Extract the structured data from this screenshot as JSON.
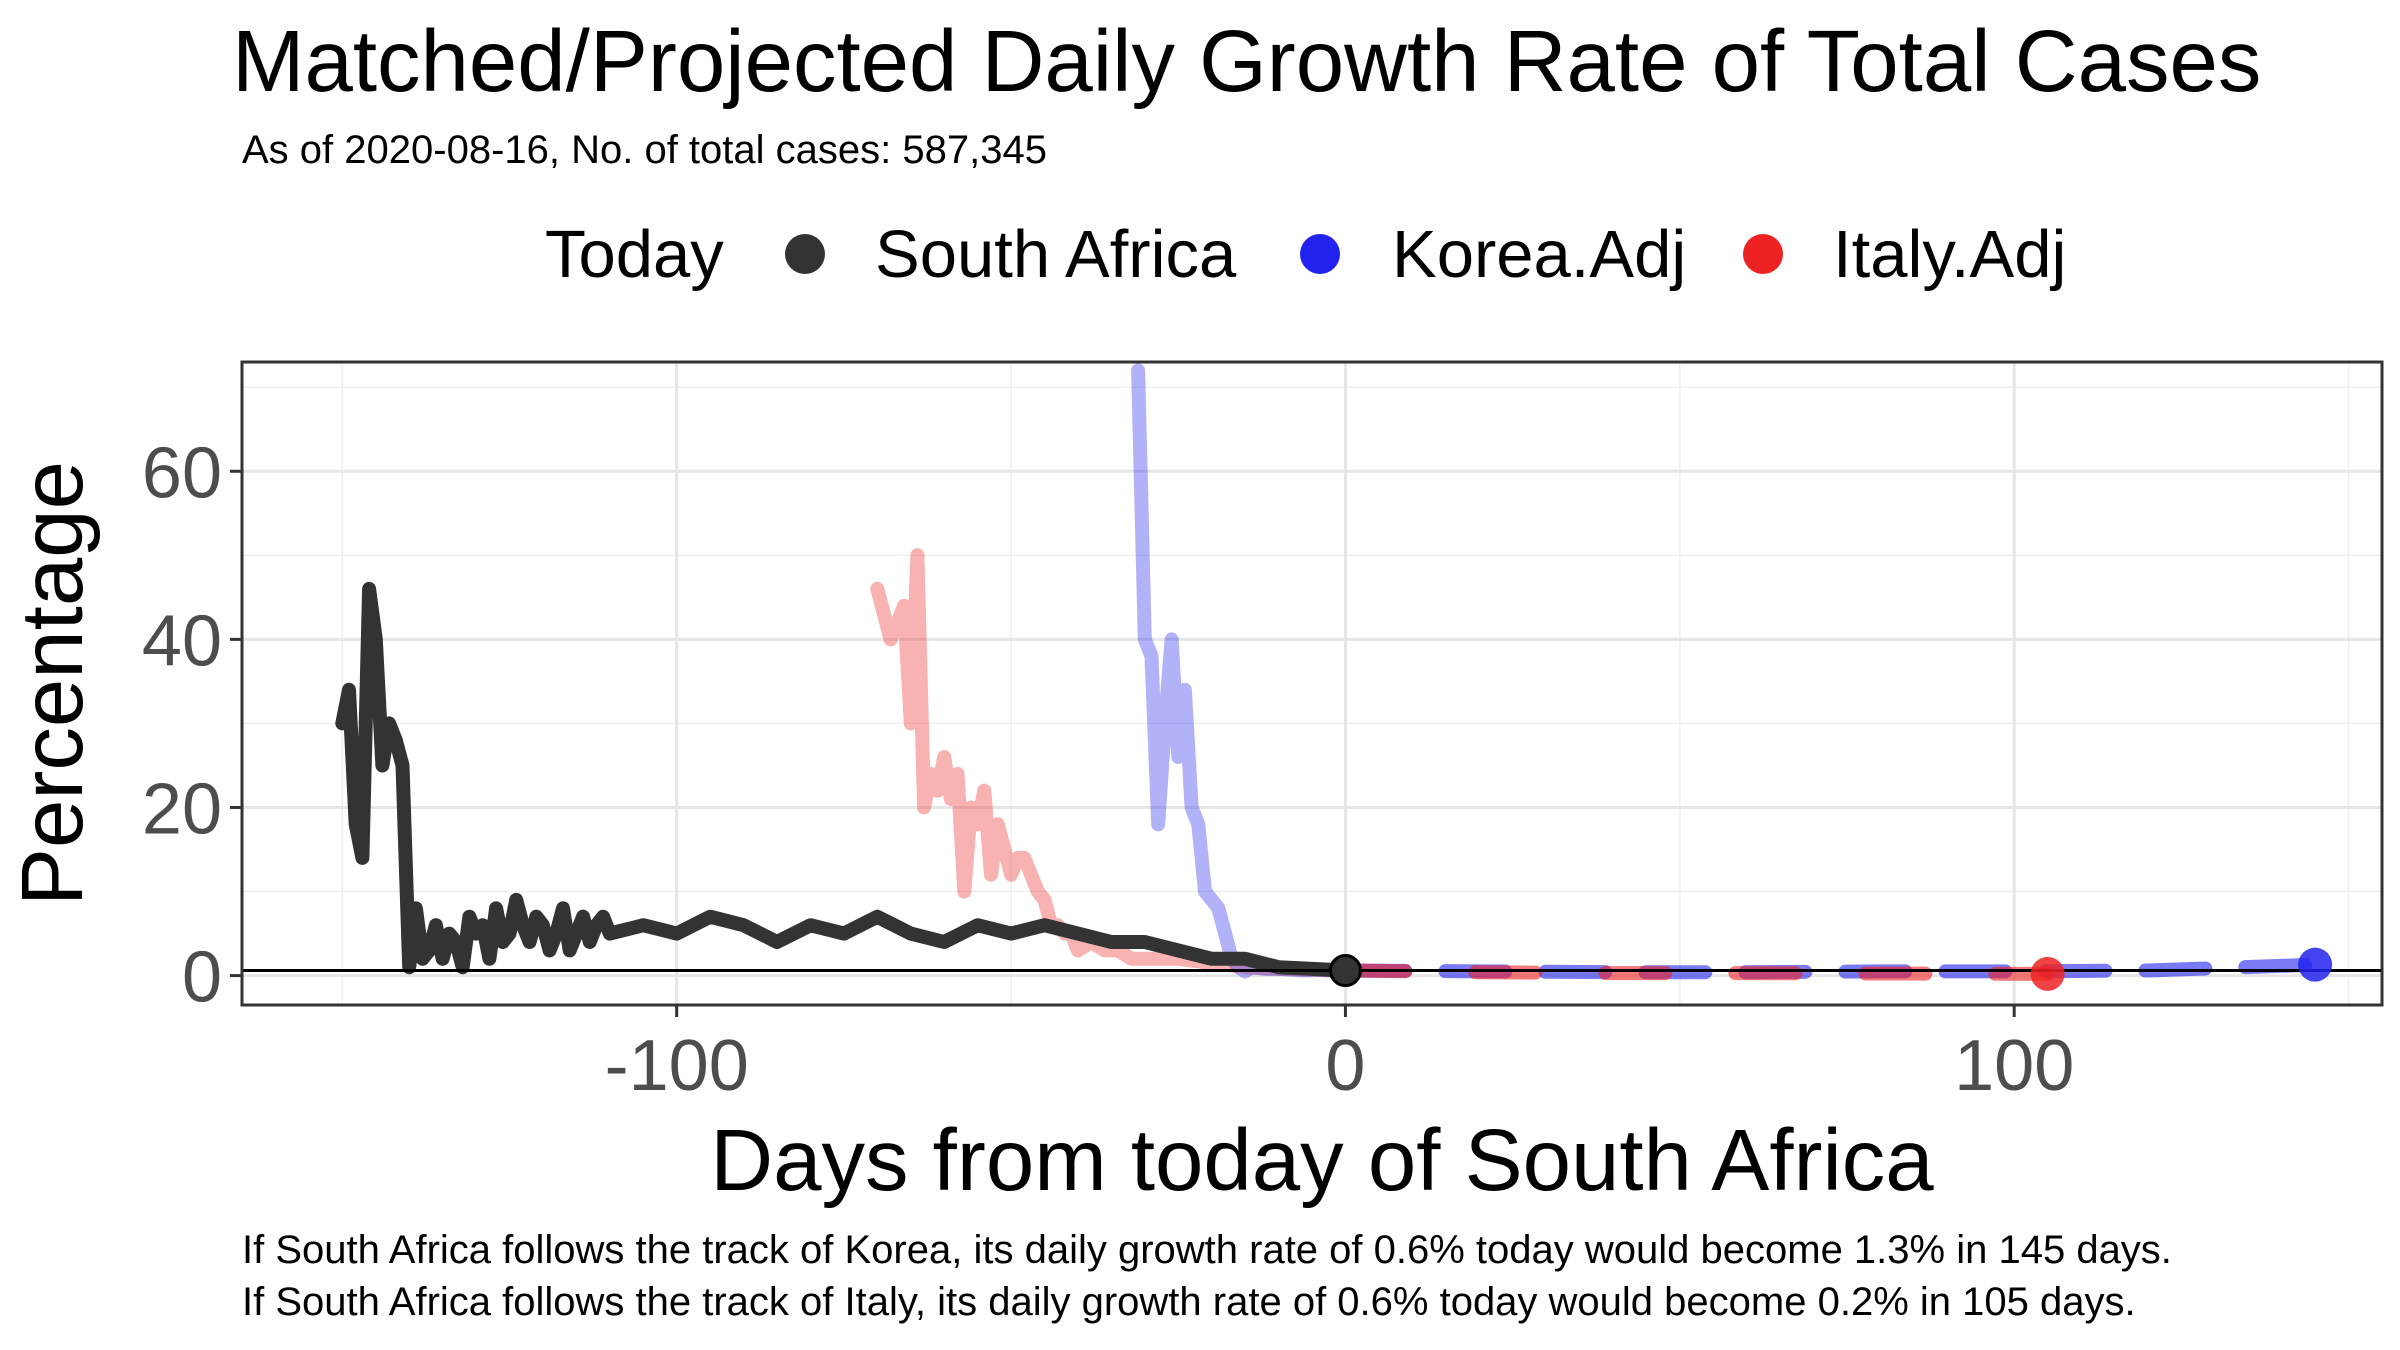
{
  "chart_data": {
    "type": "line",
    "title": "Matched/Projected Daily Growth Rate of Total Cases",
    "subtitle": "As of 2020-08-16, No. of total cases: 587,345",
    "xlabel": "Days from today of South Africa",
    "ylabel": "Percentage",
    "xlim": [
      -165,
      155
    ],
    "ylim": [
      -3.5,
      73
    ],
    "x_ticks": [
      -100,
      0,
      100
    ],
    "x_tick_labels": [
      "-100",
      "0",
      "100"
    ],
    "y_ticks": [
      0,
      20,
      40,
      60
    ],
    "y_tick_labels": [
      "0",
      "20",
      "40",
      "60"
    ],
    "grid": true,
    "legend": {
      "title": "Today",
      "position": "top",
      "entries": [
        {
          "label": "South Africa",
          "color": "#333333"
        },
        {
          "label": "Korea.Adj",
          "color": "#2222ee"
        },
        {
          "label": "Italy.Adj",
          "color": "#ee2222"
        }
      ]
    },
    "reference_line_y": 0.6,
    "series": [
      {
        "name": "South Africa",
        "color": "#333333",
        "x": [
          -150,
          -149,
          -148,
          -147,
          -146,
          -145,
          -144,
          -143,
          -142,
          -141,
          -140,
          -139,
          -138,
          -137,
          -136,
          -135,
          -134,
          -133,
          -132,
          -131,
          -130,
          -129,
          -128,
          -127,
          -126,
          -125,
          -124,
          -123,
          -122,
          -121,
          -120,
          -119,
          -118,
          -117,
          -116,
          -115,
          -114,
          -113,
          -112,
          -111,
          -110,
          -105,
          -100,
          -95,
          -90,
          -85,
          -80,
          -75,
          -70,
          -65,
          -60,
          -55,
          -50,
          -45,
          -40,
          -35,
          -30,
          -25,
          -20,
          -15,
          -10,
          -5,
          0
        ],
        "y": [
          30,
          34,
          18,
          14,
          46,
          40,
          25,
          30,
          28,
          25,
          1,
          8,
          2,
          3,
          6,
          2,
          5,
          4,
          1,
          7,
          5,
          6,
          2,
          8,
          4,
          5,
          9,
          6,
          4,
          7,
          6,
          3,
          5,
          8,
          3,
          5,
          7,
          4,
          6,
          7,
          5,
          6,
          5,
          7,
          6,
          4,
          6,
          5,
          7,
          5,
          4,
          6,
          5,
          6,
          5,
          4,
          4,
          3,
          2,
          2,
          1,
          0.8,
          0.6
        ]
      },
      {
        "name": "Italy.Adj",
        "color": "#ee2222",
        "history_x": [
          -70,
          -68,
          -66,
          -65,
          -64,
          -63,
          -62,
          -61,
          -60,
          -59,
          -58,
          -57,
          -56,
          -55,
          -54,
          -53,
          -52,
          -51,
          -50,
          -49,
          -48,
          -47,
          -46,
          -45,
          -44,
          -43,
          -42,
          -41,
          -40,
          -38,
          -36,
          -34,
          -32,
          -30,
          -25,
          -20,
          -15,
          -10,
          -5,
          0
        ],
        "history_y": [
          46,
          40,
          44,
          30,
          50,
          20,
          24,
          22,
          26,
          21,
          24,
          10,
          20,
          18,
          22,
          12,
          18,
          15,
          12,
          14,
          14,
          12,
          10,
          9,
          6,
          6,
          5,
          5,
          3,
          4,
          3,
          3,
          2,
          2,
          2,
          1.5,
          1,
          0.8,
          0.7,
          0.6
        ],
        "projection_x": [
          0,
          20,
          40,
          60,
          80,
          105
        ],
        "projection_y": [
          0.6,
          0.4,
          0.3,
          0.3,
          0.25,
          0.2
        ],
        "end_point": {
          "x": 105,
          "y": 0.2
        }
      },
      {
        "name": "Korea.Adj",
        "color": "#2222ee",
        "history_x": [
          -31,
          -30,
          -29,
          -28,
          -27,
          -26,
          -25,
          -24,
          -23,
          -22,
          -21,
          -20,
          -19,
          -18,
          -17,
          -16,
          -15,
          -14,
          -12,
          -10,
          -8,
          -6,
          -4,
          -2,
          0
        ],
        "history_y": [
          72,
          40,
          38,
          18,
          30,
          40,
          26,
          34,
          20,
          18,
          10,
          9,
          8,
          5,
          2,
          1,
          0.5,
          1,
          0.8,
          0.8,
          0.7,
          0.6,
          0.7,
          0.6,
          0.6
        ],
        "projection_x": [
          0,
          20,
          40,
          60,
          80,
          100,
          120,
          145
        ],
        "projection_y": [
          0.6,
          0.5,
          0.4,
          0.4,
          0.5,
          0.5,
          0.6,
          1.3
        ],
        "end_point": {
          "x": 145,
          "y": 1.3
        }
      }
    ],
    "today_point": {
      "x": 0,
      "y": 0.6
    }
  },
  "captions": [
    "If South Africa follows the track of Korea, its daily growth rate of 0.6% today would become 1.3% in 145 days.",
    "If South Africa follows the track of Italy, its daily growth rate of 0.6% today would become 0.2% in 105 days."
  ]
}
